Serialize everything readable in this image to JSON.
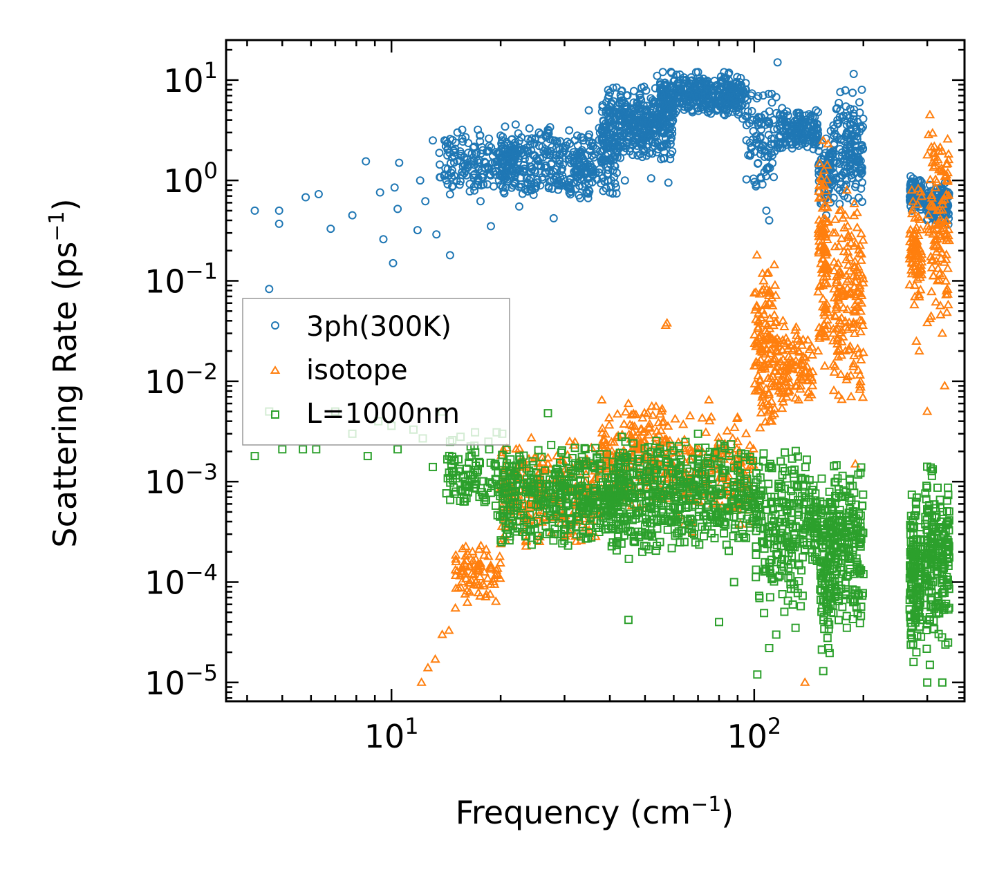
{
  "chart_data": {
    "type": "scatter",
    "title": "",
    "xlabel": "Frequency (cm",
    "xlabel_sup": "−1",
    "xlabel_tail": ")",
    "ylabel": "Scattering Rate (ps",
    "ylabel_sup": "−1",
    "ylabel_tail": ")",
    "x_scale": "log",
    "y_scale": "log",
    "xlim": [
      3.5,
      380
    ],
    "ylim": [
      6.5e-06,
      25
    ],
    "grid": false,
    "legend_position": "center-left",
    "x_ticks": [
      {
        "value": 10,
        "base": "10",
        "exp": "1"
      },
      {
        "value": 100,
        "base": "10",
        "exp": "2"
      }
    ],
    "y_ticks": [
      {
        "value": 10,
        "base": "10",
        "exp": "1"
      },
      {
        "value": 1,
        "base": "10",
        "exp": "0"
      },
      {
        "value": 0.1,
        "base": "10",
        "exp": "−1"
      },
      {
        "value": 0.01,
        "base": "10",
        "exp": "−2"
      },
      {
        "value": 0.001,
        "base": "10",
        "exp": "−3"
      },
      {
        "value": 0.0001,
        "base": "10",
        "exp": "−4"
      },
      {
        "value": 1e-05,
        "base": "10",
        "exp": "−5"
      }
    ],
    "series": [
      {
        "name": "3ph(300K)",
        "color": "#1f77b4",
        "marker": "circle",
        "points": [
          [
            4.2,
            0.5
          ],
          [
            4.6,
            0.083
          ],
          [
            4.9,
            0.5
          ],
          [
            4.9,
            0.37
          ],
          [
            5.8,
            0.68
          ],
          [
            6.3,
            0.73
          ],
          [
            6.8,
            0.33
          ],
          [
            7.8,
            0.45
          ],
          [
            8.5,
            1.55
          ],
          [
            9.3,
            0.76
          ],
          [
            9.5,
            0.26
          ],
          [
            10.2,
            0.85
          ],
          [
            10.1,
            0.15
          ],
          [
            10.4,
            0.52
          ],
          [
            10.5,
            1.5
          ],
          [
            12.0,
            1.0
          ],
          [
            11.8,
            0.32
          ],
          [
            12.4,
            0.62
          ],
          [
            13.0,
            2.5
          ],
          [
            13.3,
            0.29
          ],
          [
            14.0,
            2.5
          ],
          [
            14.5,
            0.18
          ],
          [
            14.3,
            1.3
          ],
          [
            15.2,
            3.0
          ],
          [
            16.0,
            2.7
          ],
          [
            17.3,
            3.2
          ],
          [
            18.6,
            2.2
          ],
          [
            18.8,
            0.35
          ],
          [
            20.0,
            2.8
          ],
          [
            20.5,
            1.1
          ],
          [
            22.0,
            3.6
          ],
          [
            22.5,
            0.55
          ],
          [
            24.0,
            3.3
          ],
          [
            25.5,
            3.0
          ],
          [
            27.0,
            3.2
          ],
          [
            28.0,
            0.42
          ],
          [
            30.0,
            2.0
          ],
          [
            32.0,
            2.5
          ],
          [
            35.0,
            5.0
          ],
          [
            36.0,
            2.2
          ],
          [
            38.0,
            1.5
          ],
          [
            40.0,
            7.5
          ],
          [
            42.0,
            2.2
          ],
          [
            44.0,
            1.0
          ],
          [
            46.0,
            5.0
          ],
          [
            48.0,
            5.5
          ],
          [
            50.0,
            4.0
          ],
          [
            52.0,
            1.05
          ],
          [
            54.0,
            11.0
          ],
          [
            56.0,
            12.0
          ],
          [
            58.0,
            0.95
          ],
          [
            60.0,
            8.0
          ],
          [
            65.0,
            10.0
          ],
          [
            70.0,
            12.0
          ],
          [
            78.0,
            6.0
          ],
          [
            85.0,
            7.5
          ],
          [
            92.0,
            5.5
          ],
          [
            98.0,
            7.0
          ],
          [
            105.0,
            2.0
          ],
          [
            108.0,
            0.5
          ],
          [
            110.0,
            0.4
          ],
          [
            116.0,
            15.0
          ],
          [
            120.0,
            4.0
          ],
          [
            128.0,
            3.5
          ],
          [
            138.0,
            4.0
          ],
          [
            148.0,
            5.0
          ],
          [
            155.0,
            0.6
          ],
          [
            158.0,
            0.45
          ],
          [
            165.0,
            1.0
          ],
          [
            172.0,
            0.8
          ],
          [
            180.0,
            3.0
          ],
          [
            188.0,
            11.5
          ],
          [
            195.0,
            6.0
          ],
          [
            198.0,
            8.0
          ],
          [
            270.0,
            1.1
          ],
          [
            272.0,
            0.5
          ],
          [
            285.0,
            0.7
          ],
          [
            300.0,
            0.6
          ],
          [
            305.0,
            0.9
          ],
          [
            310.0,
            0.7
          ],
          [
            320.0,
            0.45
          ],
          [
            330.0,
            0.8
          ]
        ],
        "clusters": [
          [
            13.5,
            22.0,
            0.6,
            3.5,
            170
          ],
          [
            20.0,
            42.0,
            0.6,
            3.5,
            380
          ],
          [
            38.0,
            60.0,
            1.5,
            9.5,
            380
          ],
          [
            55.0,
            95.0,
            4.0,
            12.5,
            380
          ],
          [
            95.0,
            115.0,
            0.7,
            9.0,
            90
          ],
          [
            115.0,
            150.0,
            1.8,
            5.5,
            160
          ],
          [
            150.0,
            165.0,
            0.5,
            3.5,
            70
          ],
          [
            165.0,
            200.0,
            0.5,
            9.0,
            150
          ],
          [
            268.0,
            290.0,
            0.5,
            1.1,
            80
          ],
          [
            295.0,
            345.0,
            0.35,
            1.0,
            130
          ]
        ]
      },
      {
        "name": "isotope",
        "color": "#ff7f0e",
        "marker": "triangle",
        "points": [
          [
            12.1,
            1e-05
          ],
          [
            12.6,
            1.4e-05
          ],
          [
            13.2,
            1.7e-05
          ],
          [
            13.8,
            3e-05
          ],
          [
            14.4,
            3.3e-05
          ],
          [
            15.0,
            5.5e-05
          ],
          [
            16.0,
            0.00012
          ],
          [
            17.0,
            0.00015
          ],
          [
            18.5,
            0.00018
          ],
          [
            20.0,
            0.00024
          ],
          [
            22.0,
            0.00055
          ],
          [
            24.0,
            0.0009
          ],
          [
            27.0,
            0.0015
          ],
          [
            31.0,
            0.0025
          ],
          [
            38.0,
            0.0065
          ],
          [
            45.0,
            0.006
          ],
          [
            57.0,
            0.036
          ],
          [
            57.5,
            0.038
          ],
          [
            75.0,
            0.0065
          ],
          [
            90.0,
            0.0025
          ],
          [
            95.0,
            0.003
          ],
          [
            105.0,
            0.08
          ],
          [
            120.0,
            0.04
          ],
          [
            135.0,
            0.015
          ],
          [
            138.0,
            1e-05
          ],
          [
            150.0,
            0.02
          ],
          [
            155.0,
            2.5
          ],
          [
            165.0,
            0.3
          ],
          [
            172.0,
            0.5
          ],
          [
            180.0,
            0.8
          ],
          [
            185.0,
            0.007
          ],
          [
            190.0,
            0.0015
          ],
          [
            198.0,
            0.04
          ],
          [
            272.0,
            0.8
          ],
          [
            280.0,
            0.025
          ],
          [
            285.0,
            0.02
          ],
          [
            300.0,
            0.005
          ],
          [
            305.0,
            4.5
          ],
          [
            310.0,
            1.5
          ],
          [
            320.0,
            0.5
          ],
          [
            330.0,
            0.03
          ],
          [
            335.0,
            0.009
          ]
        ],
        "clusters": [
          [
            15.0,
            20.0,
            6e-05,
            0.00025,
            80
          ],
          [
            20.0,
            38.0,
            0.0002,
            0.003,
            240
          ],
          [
            38.0,
            60.0,
            0.0005,
            0.0065,
            200
          ],
          [
            60.0,
            100.0,
            0.0003,
            0.005,
            160
          ],
          [
            100.0,
            115.0,
            0.002,
            0.2,
            140
          ],
          [
            115.0,
            145.0,
            0.004,
            0.05,
            110
          ],
          [
            150.0,
            160.0,
            0.01,
            2.5,
            110
          ],
          [
            165.0,
            200.0,
            0.005,
            0.8,
            170
          ],
          [
            268.0,
            290.0,
            0.05,
            1.0,
            80
          ],
          [
            300.0,
            345.0,
            0.03,
            4.5,
            120
          ]
        ]
      },
      {
        "name": "L=1000nm",
        "color": "#2ca02c",
        "marker": "square",
        "points": [
          [
            4.2,
            0.0018
          ],
          [
            4.6,
            0.005
          ],
          [
            5.0,
            0.0021
          ],
          [
            5.7,
            0.0021
          ],
          [
            6.2,
            0.0021
          ],
          [
            7.0,
            0.005
          ],
          [
            7.8,
            0.003
          ],
          [
            8.6,
            0.0018
          ],
          [
            9.2,
            0.004
          ],
          [
            10.0,
            0.0036
          ],
          [
            10.4,
            0.0021
          ],
          [
            11.5,
            0.0033
          ],
          [
            12.2,
            0.0027
          ],
          [
            13.0,
            0.0014
          ],
          [
            13.8,
            0.005
          ],
          [
            14.5,
            0.0025
          ],
          [
            15.5,
            0.0028
          ],
          [
            17.0,
            0.0031
          ],
          [
            18.5,
            0.0025
          ],
          [
            19.5,
            0.0031
          ],
          [
            20.2,
            0.003
          ],
          [
            27.0,
            0.0048
          ],
          [
            45.0,
            4.2e-05
          ],
          [
            55.0,
            0.00025
          ],
          [
            63.0,
            0.00032
          ],
          [
            70.0,
            0.003
          ],
          [
            80.0,
            4e-05
          ],
          [
            88.0,
            0.0001
          ],
          [
            95.0,
            0.0012
          ],
          [
            102.0,
            1.2e-05
          ],
          [
            110.0,
            2.2e-05
          ],
          [
            115.0,
            3e-05
          ],
          [
            130.0,
            3.5e-05
          ],
          [
            155.0,
            1.3e-05
          ],
          [
            160.0,
            2.2e-05
          ],
          [
            180.0,
            3.5e-05
          ],
          [
            200.0,
            0.00012
          ],
          [
            275.0,
            1.6e-05
          ],
          [
            280.0,
            2e-05
          ],
          [
            300.0,
            1e-05
          ],
          [
            305.0,
            1.5e-05
          ],
          [
            330.0,
            1e-05
          ],
          [
            340.0,
            0.0004
          ]
        ],
        "clusters": [
          [
            14.0,
            20.0,
            0.0004,
            0.003,
            90
          ],
          [
            20.0,
            40.0,
            0.0002,
            0.0025,
            380
          ],
          [
            40.0,
            60.0,
            0.00015,
            0.003,
            280
          ],
          [
            60.0,
            100.0,
            0.0002,
            0.003,
            260
          ],
          [
            100.0,
            140.0,
            4e-05,
            0.0025,
            220
          ],
          [
            140.0,
            150.0,
            0.0001,
            0.0015,
            50
          ],
          [
            152.0,
            162.0,
            1.5e-05,
            0.0012,
            90
          ],
          [
            162.0,
            200.0,
            3e-05,
            0.0018,
            210
          ],
          [
            268.0,
            290.0,
            2e-05,
            0.0008,
            140
          ],
          [
            295.0,
            345.0,
            2e-05,
            0.0018,
            200
          ]
        ]
      }
    ]
  }
}
